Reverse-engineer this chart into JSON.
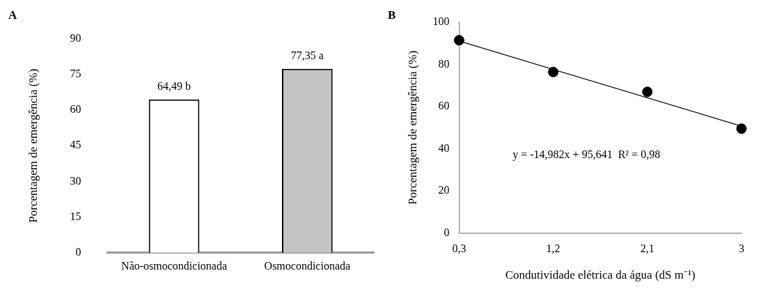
{
  "chart_data": [
    {
      "type": "bar",
      "title": "A",
      "ylabel": "Porcentagem de emergência (%)",
      "categories": [
        "Não-osmocondicionada",
        "Osmocondicionada"
      ],
      "series": [
        {
          "values": [
            64.49,
            77.35
          ],
          "colors": [
            "#ffffff",
            "#c4c4c4"
          ],
          "value_labels": [
            "64,49 b",
            "77,35 a"
          ]
        }
      ],
      "ylim": [
        0,
        90
      ],
      "yticks": [
        0,
        15,
        30,
        45,
        60,
        75,
        90
      ],
      "grid": false,
      "legend": false
    },
    {
      "type": "scatter",
      "title": "B",
      "ylabel": "Porcentagem de emergência (%)",
      "xlabel": "Condutividade elétrica da água (dS m⁻¹)",
      "series": [
        {
          "type": "scatter",
          "color": "#000000",
          "x": [
            0.3,
            1.2,
            2.1,
            3
          ],
          "values": [
            91.5,
            76.4,
            67.0,
            49.5
          ],
          "marker": "circle"
        },
        {
          "type": "line",
          "color": "#000000",
          "x": [
            0.3,
            3
          ],
          "values": [
            91.1,
            50.7
          ],
          "marker": "none"
        }
      ],
      "xlim": [
        0.3,
        3
      ],
      "xticks": [
        {
          "value": 0.3,
          "label": "0,3"
        },
        {
          "value": 1.2,
          "label": "1,2"
        },
        {
          "value": 2.1,
          "label": "2,1"
        },
        {
          "value": 3,
          "label": "3"
        }
      ],
      "ylim": [
        0,
        100
      ],
      "yticks": [
        0,
        20,
        40,
        60,
        80,
        100
      ],
      "grid": false,
      "legend": false,
      "annotations": [
        "y = -14,982x + 95,641  R² = 0,98"
      ]
    }
  ]
}
